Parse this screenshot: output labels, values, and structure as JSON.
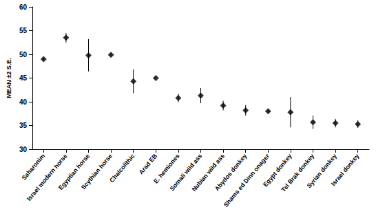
{
  "chart_data": {
    "type": "scatter",
    "ylabel": "MEAN ±2 S.E.",
    "categories": [
      "Saharonim",
      "Israel modern horse",
      "Egyptian horse",
      "Scythian horse",
      "Chalcolithic",
      "Arad EB",
      "E. hemiones",
      "Somali wild ass",
      "Nubian wild ass",
      "Abydos donkey",
      "Shams ed Dinn onager",
      "Egypt donkey",
      "Tel Brak donkey",
      "Syrian donkey",
      "Israel donkey"
    ],
    "values": [
      49.0,
      53.5,
      49.8,
      49.9,
      44.3,
      45.0,
      40.8,
      41.3,
      39.2,
      38.2,
      38.0,
      37.8,
      35.7,
      35.5,
      35.3
    ],
    "errors": [
      0.3,
      1.0,
      3.4,
      0.3,
      2.5,
      0.2,
      0.9,
      1.6,
      1.0,
      1.1,
      0.3,
      3.2,
      1.4,
      0.9,
      0.8
    ],
    "color": "#000000",
    "marker": "diamond",
    "ylim": [
      30,
      60
    ],
    "yticks": [
      30,
      35,
      40,
      45,
      50,
      55,
      60
    ],
    "grid": false
  }
}
